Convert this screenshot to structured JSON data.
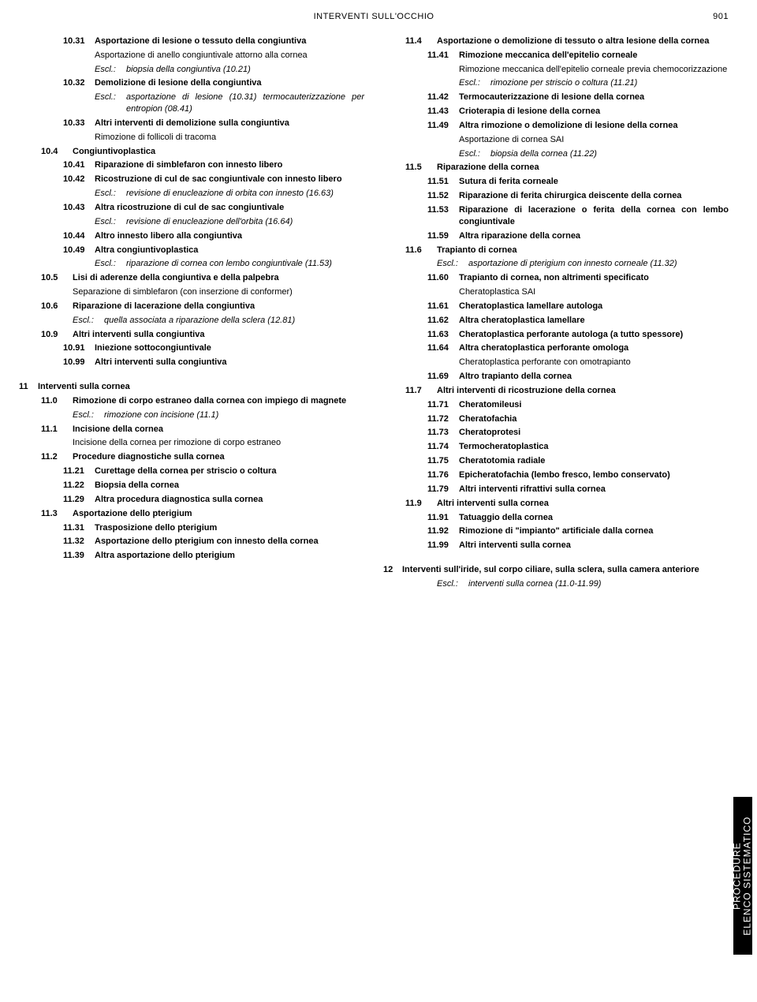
{
  "header": {
    "title": "INTERVENTI SULL'OCCHIO",
    "page": "901"
  },
  "sideTab": {
    "line1": "PROCEDURE",
    "line2": "ELENCO SISTEMATICO"
  },
  "left": [
    {
      "lvl": 2,
      "type": "item",
      "code": "10.31",
      "bold": true,
      "txt": "Asportazione di lesione o tessuto della congiuntiva"
    },
    {
      "lvl": 2,
      "type": "sub",
      "txt": "Asportazione di anello congiuntivale attorno alla cornea",
      "indent": 40
    },
    {
      "lvl": 2,
      "type": "escl",
      "indent": 40,
      "txt": "biopsia della congiuntiva (10.21)"
    },
    {
      "lvl": 2,
      "type": "item",
      "code": "10.32",
      "bold": true,
      "txt": "Demolizione di lesione della congiuntiva"
    },
    {
      "lvl": 2,
      "type": "escl",
      "indent": 40,
      "txt": "asportazione di lesione (10.31) termocauterizzazione per entropion (08.41)"
    },
    {
      "lvl": 2,
      "type": "item",
      "code": "10.33",
      "bold": true,
      "txt": "Altri interventi di demolizione sulla congiuntiva"
    },
    {
      "lvl": 2,
      "type": "sub",
      "txt": "Rimozione di follicoli di tracoma",
      "indent": 40
    },
    {
      "lvl": 1,
      "type": "item",
      "code": "10.4",
      "bold": true,
      "txt": "Congiuntivoplastica"
    },
    {
      "lvl": 2,
      "type": "item",
      "code": "10.41",
      "bold": true,
      "txt": "Riparazione di simblefaron con innesto libero"
    },
    {
      "lvl": 2,
      "type": "item",
      "code": "10.42",
      "bold": true,
      "txt": "Ricostruzione di cul de sac congiuntivale con innesto libero"
    },
    {
      "lvl": 2,
      "type": "escl",
      "indent": 40,
      "txt": "revisione di enucleazione di orbita con innesto (16.63)"
    },
    {
      "lvl": 2,
      "type": "item",
      "code": "10.43",
      "bold": true,
      "txt": "Altra ricostruzione di cul de sac congiuntivale"
    },
    {
      "lvl": 2,
      "type": "escl",
      "indent": 40,
      "txt": "revisione di enucleazione dell'orbita (16.64)"
    },
    {
      "lvl": 2,
      "type": "item",
      "code": "10.44",
      "bold": true,
      "txt": "Altro innesto libero alla congiuntiva"
    },
    {
      "lvl": 2,
      "type": "item",
      "code": "10.49",
      "bold": true,
      "txt": "Altra congiuntivoplastica"
    },
    {
      "lvl": 2,
      "type": "escl",
      "indent": 40,
      "txt": "riparazione di cornea con lembo congiuntivale (11.53)"
    },
    {
      "lvl": 1,
      "type": "item",
      "code": "10.5",
      "bold": true,
      "txt": "Lisi di aderenze della congiuntiva e della palpebra"
    },
    {
      "lvl": 1,
      "type": "sub",
      "txt": "Separazione di simblefaron (con inserzione di conformer)",
      "indent": 40
    },
    {
      "lvl": 1,
      "type": "item",
      "code": "10.6",
      "bold": true,
      "txt": "Riparazione di lacerazione della congiuntiva"
    },
    {
      "lvl": 1,
      "type": "escl",
      "indent": 40,
      "txt": "quella associata a riparazione della sclera (12.81)"
    },
    {
      "lvl": 1,
      "type": "item",
      "code": "10.9",
      "bold": true,
      "txt": "Altri interventi sulla congiuntiva"
    },
    {
      "lvl": 2,
      "type": "item",
      "code": "10.91",
      "bold": true,
      "txt": "Iniezione sottocongiuntivale"
    },
    {
      "lvl": 2,
      "type": "item",
      "code": "10.99",
      "bold": true,
      "txt": "Altri interventi sulla congiuntiva"
    },
    {
      "lvl": 0,
      "type": "spacer"
    },
    {
      "lvl": 0,
      "type": "item",
      "code": "11",
      "bold": true,
      "txt": "Interventi sulla cornea",
      "short": true
    },
    {
      "lvl": 1,
      "type": "item",
      "code": "11.0",
      "bold": true,
      "txt": "Rimozione di corpo estraneo dalla cornea con impiego di magnete"
    },
    {
      "lvl": 1,
      "type": "escl",
      "indent": 40,
      "txt": "rimozione con incisione (11.1)"
    },
    {
      "lvl": 1,
      "type": "item",
      "code": "11.1",
      "bold": true,
      "txt": "Incisione della cornea"
    },
    {
      "lvl": 1,
      "type": "sub",
      "txt": "Incisione della cornea per rimozione di corpo estraneo",
      "indent": 40
    },
    {
      "lvl": 1,
      "type": "item",
      "code": "11.2",
      "bold": true,
      "txt": "Procedure diagnostiche sulla cornea"
    },
    {
      "lvl": 2,
      "type": "item",
      "code": "11.21",
      "bold": true,
      "txt": "Curettage della cornea per striscio o coltura"
    },
    {
      "lvl": 2,
      "type": "item",
      "code": "11.22",
      "bold": true,
      "txt": "Biopsia della cornea"
    },
    {
      "lvl": 2,
      "type": "item",
      "code": "11.29",
      "bold": true,
      "txt": "Altra procedura diagnostica sulla cornea"
    },
    {
      "lvl": 1,
      "type": "item",
      "code": "11.3",
      "bold": true,
      "txt": "Asportazione dello pterigium"
    },
    {
      "lvl": 2,
      "type": "item",
      "code": "11.31",
      "bold": true,
      "txt": "Trasposizione dello pterigium"
    },
    {
      "lvl": 2,
      "type": "item",
      "code": "11.32",
      "bold": true,
      "txt": "Asportazione dello pterigium con innesto della cornea"
    },
    {
      "lvl": 2,
      "type": "item",
      "code": "11.39",
      "bold": true,
      "txt": "Altra asportazione dello pterigium"
    }
  ],
  "right": [
    {
      "lvl": 1,
      "type": "item",
      "code": "11.4",
      "bold": true,
      "txt": "Asportazione o demolizione di tessuto o altra lesione della cornea"
    },
    {
      "lvl": 2,
      "type": "item",
      "code": "11.41",
      "bold": true,
      "txt": "Rimozione meccanica dell'epitelio corneale"
    },
    {
      "lvl": 2,
      "type": "sub",
      "txt": "Rimozione meccanica dell'epitelio corneale previa chemocorizzazione",
      "indent": 40
    },
    {
      "lvl": 2,
      "type": "escl",
      "indent": 40,
      "txt": "rimozione per striscio o coltura (11.21)"
    },
    {
      "lvl": 2,
      "type": "item",
      "code": "11.42",
      "bold": true,
      "txt": "Termocauterizzazione di lesione della cornea"
    },
    {
      "lvl": 2,
      "type": "item",
      "code": "11.43",
      "bold": true,
      "txt": "Crioterapia di lesione della cornea"
    },
    {
      "lvl": 2,
      "type": "item",
      "code": "11.49",
      "bold": true,
      "txt": "Altra rimozione o demolizione di lesione della cornea"
    },
    {
      "lvl": 2,
      "type": "sub",
      "txt": "Asportazione di cornea SAI",
      "indent": 40
    },
    {
      "lvl": 2,
      "type": "escl",
      "indent": 40,
      "txt": "biopsia della cornea (11.22)"
    },
    {
      "lvl": 1,
      "type": "item",
      "code": "11.5",
      "bold": true,
      "txt": "Riparazione della cornea"
    },
    {
      "lvl": 2,
      "type": "item",
      "code": "11.51",
      "bold": true,
      "txt": "Sutura di ferita corneale"
    },
    {
      "lvl": 2,
      "type": "item",
      "code": "11.52",
      "bold": true,
      "txt": "Riparazione di ferita chirurgica deiscente della cornea"
    },
    {
      "lvl": 2,
      "type": "item",
      "code": "11.53",
      "bold": true,
      "txt": "Riparazione di lacerazione o ferita della cornea con lembo congiuntivale"
    },
    {
      "lvl": 2,
      "type": "item",
      "code": "11.59",
      "bold": true,
      "txt": "Altra riparazione della cornea"
    },
    {
      "lvl": 1,
      "type": "item",
      "code": "11.6",
      "bold": true,
      "txt": "Trapianto di cornea"
    },
    {
      "lvl": 1,
      "type": "escl",
      "indent": 40,
      "txt": "asportazione di pterigium con innesto corneale (11.32)"
    },
    {
      "lvl": 2,
      "type": "item",
      "code": "11.60",
      "bold": true,
      "txt": "Trapianto di cornea, non altrimenti specificato"
    },
    {
      "lvl": 2,
      "type": "sub",
      "txt": "Cheratoplastica SAI",
      "indent": 40
    },
    {
      "lvl": 2,
      "type": "item",
      "code": "11.61",
      "bold": true,
      "txt": "Cheratoplastica lamellare autologa"
    },
    {
      "lvl": 2,
      "type": "item",
      "code": "11.62",
      "bold": true,
      "txt": "Altra cheratoplastica lamellare"
    },
    {
      "lvl": 2,
      "type": "item",
      "code": "11.63",
      "bold": true,
      "txt": "Cheratoplastica perforante autologa (a tutto spessore)"
    },
    {
      "lvl": 2,
      "type": "item",
      "code": "11.64",
      "bold": true,
      "txt": "Altra cheratoplastica perforante omologa"
    },
    {
      "lvl": 2,
      "type": "sub",
      "txt": "Cheratoplastica perforante con omotrapianto",
      "indent": 40
    },
    {
      "lvl": 2,
      "type": "item",
      "code": "11.69",
      "bold": true,
      "txt": "Altro trapianto della cornea"
    },
    {
      "lvl": 1,
      "type": "item",
      "code": "11.7",
      "bold": true,
      "txt": "Altri interventi di ricostruzione della cornea"
    },
    {
      "lvl": 2,
      "type": "item",
      "code": "11.71",
      "bold": true,
      "txt": "Cheratomileusi"
    },
    {
      "lvl": 2,
      "type": "item",
      "code": "11.72",
      "bold": true,
      "txt": "Cheratofachia"
    },
    {
      "lvl": 2,
      "type": "item",
      "code": "11.73",
      "bold": true,
      "txt": "Cheratoprotesi"
    },
    {
      "lvl": 2,
      "type": "item",
      "code": "11.74",
      "bold": true,
      "txt": "Termocheratoplastica"
    },
    {
      "lvl": 2,
      "type": "item",
      "code": "11.75",
      "bold": true,
      "txt": "Cheratotomia radiale"
    },
    {
      "lvl": 2,
      "type": "item",
      "code": "11.76",
      "bold": true,
      "txt": "Epicheratofachia (lembo fresco, lembo conservato)"
    },
    {
      "lvl": 2,
      "type": "item",
      "code": "11.79",
      "bold": true,
      "txt": "Altri interventi rifrattivi sulla cornea"
    },
    {
      "lvl": 1,
      "type": "item",
      "code": "11.9",
      "bold": true,
      "txt": "Altri interventi sulla cornea"
    },
    {
      "lvl": 2,
      "type": "item",
      "code": "11.91",
      "bold": true,
      "txt": "Tatuaggio della cornea"
    },
    {
      "lvl": 2,
      "type": "item",
      "code": "11.92",
      "bold": true,
      "txt": "Rimozione di \"impianto\" artificiale dalla cornea"
    },
    {
      "lvl": 2,
      "type": "item",
      "code": "11.99",
      "bold": true,
      "txt": "Altri interventi sulla cornea"
    },
    {
      "lvl": 0,
      "type": "spacer"
    },
    {
      "lvl": 0,
      "type": "item",
      "code": "12",
      "bold": true,
      "txt": "Interventi sull'iride, sul corpo ciliare, sulla sclera, sulla camera anteriore",
      "short": true
    },
    {
      "lvl": 1,
      "type": "escl",
      "indent": 40,
      "txt": "interventi sulla cornea (11.0-11.99)"
    }
  ]
}
